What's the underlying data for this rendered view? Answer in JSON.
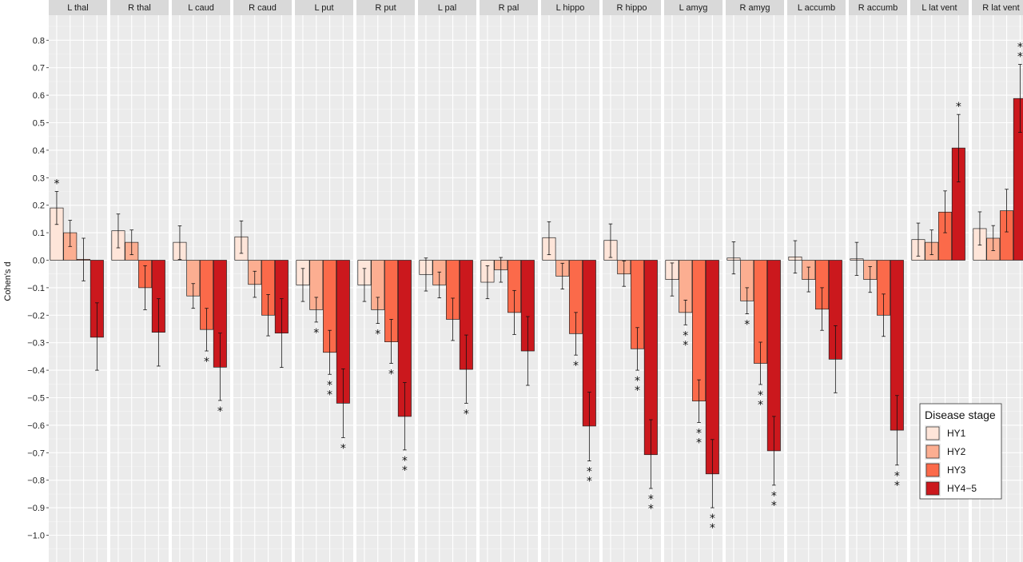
{
  "chart_data": {
    "type": "bar",
    "ylabel": "Cohen's d",
    "ylim": [
      -1.09,
      0.9
    ],
    "yticks": [
      0.8,
      0.7,
      0.6,
      0.5,
      0.4,
      0.3,
      0.2,
      0.1,
      0.0,
      -0.1,
      -0.2,
      -0.3,
      -0.4,
      -0.5,
      -0.6,
      -0.7,
      -0.8,
      -0.9,
      -1.0
    ],
    "ytick_labels": [
      "0.8",
      "0.7",
      "0.6",
      "0.5",
      "0.4",
      "0.3",
      "0.2",
      "0.1",
      "0.0",
      "−0.1",
      "−0.2",
      "−0.3",
      "−0.4",
      "−0.5",
      "−0.6",
      "−0.7",
      "−0.8",
      "−0.9",
      "−1.0"
    ],
    "grid": true,
    "legend": {
      "title": "Disease stage",
      "position": "bottom-right",
      "entries": [
        {
          "label": "HY1",
          "color": "#FEE5D9"
        },
        {
          "label": "HY2",
          "color": "#FCAE91"
        },
        {
          "label": "HY3",
          "color": "#FB6A4A"
        },
        {
          "label": "HY4−5",
          "color": "#CB181D"
        }
      ]
    },
    "series_names": [
      "HY1",
      "HY2",
      "HY3",
      "HY4−5"
    ],
    "colors": [
      "#FEE5D9",
      "#FCAE91",
      "#FB6A4A",
      "#CB181D"
    ],
    "panels": [
      {
        "label": "L thal",
        "values": [
          0.19,
          0.1,
          0.003,
          -0.28
        ],
        "ci": [
          [
            0.13,
            0.25
          ],
          [
            0.05,
            0.145
          ],
          [
            -0.075,
            0.08
          ],
          [
            -0.4,
            -0.155
          ]
        ],
        "stars": [
          1,
          0,
          0,
          0
        ]
      },
      {
        "label": "R thal",
        "values": [
          0.107,
          0.065,
          -0.1,
          -0.262
        ],
        "ci": [
          [
            0.045,
            0.168
          ],
          [
            0.02,
            0.11
          ],
          [
            -0.18,
            -0.02
          ],
          [
            -0.385,
            -0.14
          ]
        ],
        "stars": [
          0,
          0,
          0,
          0
        ]
      },
      {
        "label": "L caud",
        "values": [
          0.065,
          -0.13,
          -0.252,
          -0.389
        ],
        "ci": [
          [
            0.003,
            0.125
          ],
          [
            -0.175,
            -0.085
          ],
          [
            -0.33,
            -0.175
          ],
          [
            -0.51,
            -0.265
          ]
        ],
        "stars": [
          0,
          0,
          1,
          1
        ]
      },
      {
        "label": "R caud",
        "values": [
          0.085,
          -0.088,
          -0.2,
          -0.265
        ],
        "ci": [
          [
            0.025,
            0.143
          ],
          [
            -0.135,
            -0.04
          ],
          [
            -0.275,
            -0.125
          ],
          [
            -0.39,
            -0.14
          ]
        ],
        "stars": [
          0,
          0,
          0,
          0
        ]
      },
      {
        "label": "L put",
        "values": [
          -0.09,
          -0.18,
          -0.335,
          -0.52
        ],
        "ci": [
          [
            -0.15,
            -0.03
          ],
          [
            -0.225,
            -0.135
          ],
          [
            -0.415,
            -0.255
          ],
          [
            -0.645,
            -0.395
          ]
        ],
        "stars": [
          0,
          1,
          2,
          1
        ]
      },
      {
        "label": "R put",
        "values": [
          -0.09,
          -0.18,
          -0.297,
          -0.568
        ],
        "ci": [
          [
            -0.15,
            -0.03
          ],
          [
            -0.23,
            -0.135
          ],
          [
            -0.375,
            -0.215
          ],
          [
            -0.69,
            -0.445
          ]
        ],
        "stars": [
          0,
          1,
          1,
          2
        ]
      },
      {
        "label": "L pal",
        "values": [
          -0.052,
          -0.09,
          -0.215,
          -0.397
        ],
        "ci": [
          [
            -0.112,
            0.008
          ],
          [
            -0.137,
            -0.043
          ],
          [
            -0.292,
            -0.138
          ],
          [
            -0.52,
            -0.272
          ]
        ],
        "stars": [
          0,
          0,
          0,
          1
        ]
      },
      {
        "label": "R pal",
        "values": [
          -0.08,
          -0.035,
          -0.19,
          -0.33
        ],
        "ci": [
          [
            -0.14,
            -0.02
          ],
          [
            -0.08,
            0.01
          ],
          [
            -0.27,
            -0.11
          ],
          [
            -0.455,
            -0.205
          ]
        ],
        "stars": [
          0,
          0,
          0,
          0
        ]
      },
      {
        "label": "L hippo",
        "values": [
          0.082,
          -0.058,
          -0.267,
          -0.603
        ],
        "ci": [
          [
            0.02,
            0.14
          ],
          [
            -0.105,
            -0.011
          ],
          [
            -0.345,
            -0.19
          ],
          [
            -0.73,
            -0.48
          ]
        ],
        "stars": [
          0,
          0,
          1,
          2
        ]
      },
      {
        "label": "R hippo",
        "values": [
          0.072,
          -0.05,
          -0.322,
          -0.707
        ],
        "ci": [
          [
            0.01,
            0.132
          ],
          [
            -0.095,
            -0.003
          ],
          [
            -0.4,
            -0.245
          ],
          [
            -0.83,
            -0.58
          ]
        ],
        "stars": [
          0,
          0,
          2,
          2
        ]
      },
      {
        "label": "L amyg",
        "values": [
          -0.07,
          -0.19,
          -0.512,
          -0.777
        ],
        "ci": [
          [
            -0.13,
            -0.01
          ],
          [
            -0.235,
            -0.145
          ],
          [
            -0.59,
            -0.435
          ],
          [
            -0.9,
            -0.652
          ]
        ],
        "stars": [
          0,
          2,
          2,
          2
        ]
      },
      {
        "label": "R amyg",
        "values": [
          0.008,
          -0.148,
          -0.375,
          -0.693
        ],
        "ci": [
          [
            -0.05,
            0.067
          ],
          [
            -0.195,
            -0.1
          ],
          [
            -0.452,
            -0.298
          ],
          [
            -0.818,
            -0.568
          ]
        ],
        "stars": [
          0,
          1,
          2,
          2
        ]
      },
      {
        "label": "L accumb",
        "values": [
          0.012,
          -0.07,
          -0.178,
          -0.36
        ],
        "ci": [
          [
            -0.047,
            0.071
          ],
          [
            -0.115,
            -0.025
          ],
          [
            -0.255,
            -0.1
          ],
          [
            -0.482,
            -0.238
          ]
        ],
        "stars": [
          0,
          0,
          0,
          0
        ]
      },
      {
        "label": "R accumb",
        "values": [
          0.005,
          -0.07,
          -0.2,
          -0.618
        ],
        "ci": [
          [
            -0.055,
            0.065
          ],
          [
            -0.117,
            -0.023
          ],
          [
            -0.277,
            -0.123
          ],
          [
            -0.745,
            -0.492
          ]
        ],
        "stars": [
          0,
          0,
          0,
          2
        ]
      },
      {
        "label": "L lat vent",
        "values": [
          0.075,
          0.065,
          0.175,
          0.408
        ],
        "ci": [
          [
            0.015,
            0.135
          ],
          [
            0.02,
            0.11
          ],
          [
            0.1,
            0.252
          ],
          [
            0.285,
            0.53
          ]
        ],
        "stars": [
          0,
          0,
          0,
          1
        ]
      },
      {
        "label": "R lat vent",
        "values": [
          0.115,
          0.08,
          0.18,
          0.588
        ],
        "ci": [
          [
            0.055,
            0.176
          ],
          [
            0.035,
            0.126
          ],
          [
            0.103,
            0.258
          ],
          [
            0.465,
            0.712
          ]
        ],
        "stars": [
          0,
          0,
          0,
          2
        ]
      }
    ]
  }
}
